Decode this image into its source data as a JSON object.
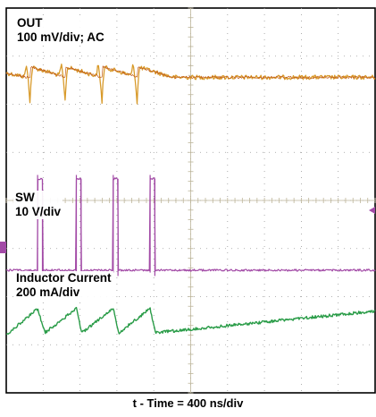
{
  "chart_data": {
    "type": "line",
    "title": "",
    "xlabel": "t - Time = 400 ns/div",
    "x_divisions": 10,
    "y_divisions": 8,
    "series": [
      {
        "name": "OUT",
        "label_lines": [
          "OUT",
          "100 mV/div; AC"
        ],
        "color": "#e0912a",
        "waveform": "output-ripple",
        "switching_edges_div": [
          0.65,
          1.6,
          2.6,
          3.55
        ],
        "level_div": 1.4
      },
      {
        "name": "SW",
        "label_lines": [
          "SW",
          "10 V/div"
        ],
        "color": "#a24aa6",
        "waveform": "pulse",
        "pulse_intervals_div": [
          [
            0.85,
            0.98
          ],
          [
            1.9,
            2.03
          ],
          [
            2.9,
            3.03
          ],
          [
            3.9,
            4.03
          ]
        ],
        "low_level_div": 5.45,
        "high_level_div": 3.55
      },
      {
        "name": "Inductor Current",
        "label_lines": [
          "Inductor Current",
          "200 mA/div"
        ],
        "color": "#2a9c48",
        "waveform": "triangle",
        "peaks_div": [
          0.85,
          1.9,
          2.9,
          3.9
        ],
        "valleys_div": [
          1.05,
          2.05,
          3.05,
          4.05
        ],
        "min_level_div": 6.75,
        "max_level_div": 6.25
      }
    ]
  }
}
